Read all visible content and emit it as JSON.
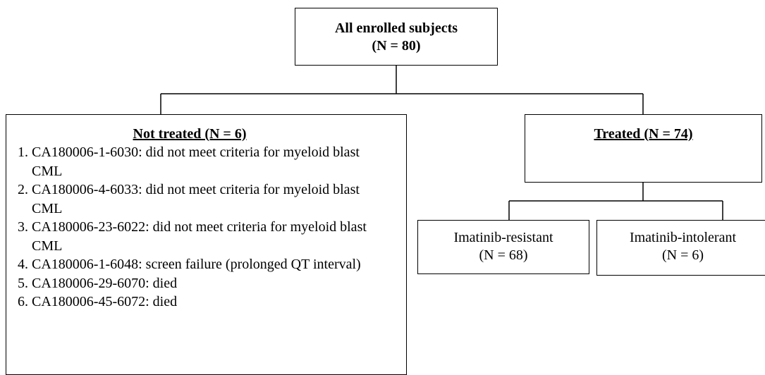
{
  "nodes": {
    "enrolled": {
      "label": "All enrolled subjects",
      "count": "(N = 80)"
    },
    "not_treated": {
      "heading": "Not treated (N = 6)",
      "items": [
        "CA180006-1-6030: did not meet criteria for myeloid blast CML",
        "CA180006-4-6033: did not meet criteria for myeloid blast CML",
        "CA180006-23-6022: did not meet criteria for myeloid blast CML",
        "CA180006-1-6048: screen failure (prolonged QT interval)",
        "CA180006-29-6070: died",
        "CA180006-45-6072: died"
      ]
    },
    "treated": {
      "heading": "Treated (N = 74)"
    },
    "resistant": {
      "label": "Imatinib-resistant",
      "count": "(N = 68)"
    },
    "intolerant": {
      "label": "Imatinib-intolerant",
      "count": "(N = 6)"
    }
  }
}
